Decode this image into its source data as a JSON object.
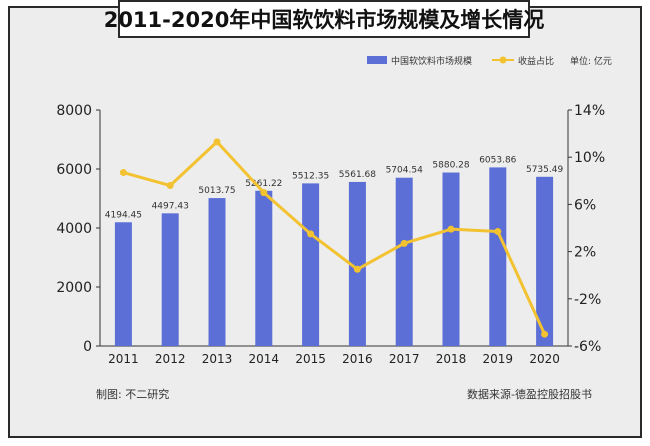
{
  "chart_data": {
    "type": "bar",
    "title": "2011-2020年中国软饮料市场规模及增长情况",
    "unit_label": "单位: 亿元",
    "categories": [
      "2011",
      "2012",
      "2013",
      "2014",
      "2015",
      "2016",
      "2017",
      "2018",
      "2019",
      "2020"
    ],
    "series": [
      {
        "name": "中国软饮料市场规模",
        "type": "bar",
        "axis": "left",
        "color": "#5b6fd6",
        "values": [
          4194.45,
          4497.43,
          5013.75,
          5261.22,
          5512.35,
          5561.68,
          5704.54,
          5880.28,
          6053.86,
          5735.49
        ],
        "labels": [
          "4194.45",
          "4497.43",
          "5013.75",
          "5261.22",
          "5512.35",
          "5561.68",
          "5704.54",
          "5880.28",
          "6053.86",
          "5735.49"
        ]
      },
      {
        "name": "收益占比",
        "type": "line",
        "axis": "right",
        "color": "#f2c230",
        "values": [
          8.7,
          7.6,
          11.3,
          7.0,
          3.5,
          0.5,
          2.7,
          3.9,
          3.7,
          -5.0
        ]
      }
    ],
    "left_axis": {
      "min": 0,
      "max": 8000,
      "ticks": [
        0,
        2000,
        4000,
        6000,
        8000
      ],
      "tick_labels": [
        "0",
        "2000",
        "4000",
        "6000",
        "8000"
      ]
    },
    "right_axis": {
      "min": -6,
      "max": 14,
      "ticks": [
        -6,
        -2,
        2,
        6,
        10,
        14
      ],
      "tick_labels": [
        "-6%",
        "-2%",
        "2%",
        "6%",
        "10%",
        "14%"
      ]
    },
    "legend_position": "top-right",
    "grid": false
  },
  "footer": {
    "credit": "制图: 不二研究",
    "source": "数据来源-德盈控股招股书"
  }
}
